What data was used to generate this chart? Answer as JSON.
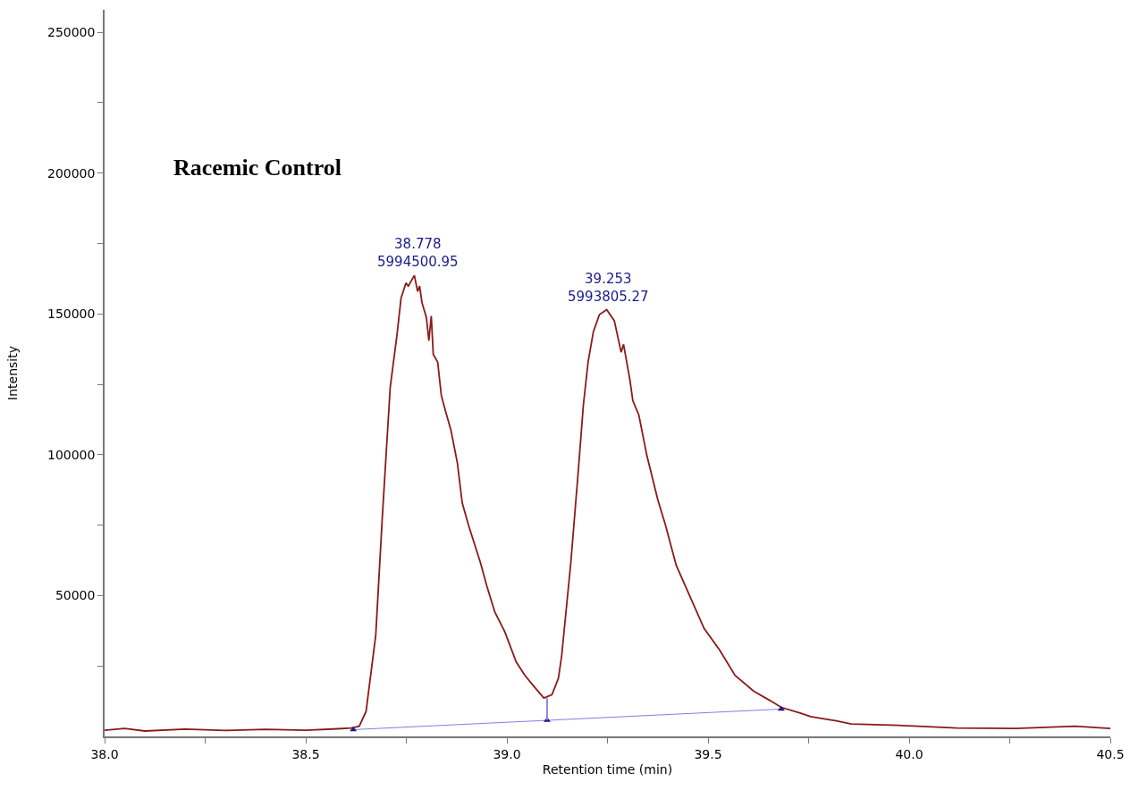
{
  "chart_data": {
    "type": "line",
    "title": "Racemic Control",
    "xlabel": "Retention time (min)",
    "ylabel": "Intensity",
    "xlim": [
      38.0,
      40.5
    ],
    "xticks": [
      {
        "value": 38,
        "label": "38.0"
      },
      {
        "value": 38.25,
        "label": null
      },
      38.5,
      {
        "value": 38.75,
        "label": null
      },
      {
        "value": 39,
        "label": "39.0"
      },
      {
        "value": 39.25,
        "label": null
      },
      39.5,
      {
        "value": 39.75,
        "label": null
      },
      {
        "value": 40,
        "label": "40.0"
      },
      {
        "value": 40.25,
        "label": null
      },
      40.5
    ],
    "ylim": [
      0,
      258000
    ],
    "yticks": [
      {
        "value": 25000,
        "label": null
      },
      50000,
      {
        "value": 75000,
        "label": null
      },
      100000,
      {
        "value": 125000,
        "label": null
      },
      150000,
      {
        "value": 175000,
        "label": null
      },
      200000,
      {
        "value": 225000,
        "label": null
      },
      250000
    ],
    "marker": "none",
    "line_style": "solid",
    "series": [
      {
        "color": "#8b1a1a",
        "x": [
          38.0,
          38.05,
          38.1,
          38.2,
          38.3,
          38.4,
          38.5,
          38.58,
          38.613,
          38.633,
          38.65,
          38.674,
          38.69,
          38.71,
          38.727,
          38.737,
          38.749,
          38.755,
          38.77,
          38.778,
          38.783,
          38.789,
          38.8,
          38.806,
          38.812,
          38.817,
          38.828,
          38.837,
          38.848,
          38.861,
          38.877,
          38.889,
          38.905,
          38.934,
          38.95,
          38.97,
          38.995,
          39.023,
          39.044,
          39.064,
          39.092,
          39.112,
          39.128,
          39.136,
          39.159,
          39.178,
          39.19,
          39.202,
          39.215,
          39.23,
          39.248,
          39.267,
          39.284,
          39.29,
          39.306,
          39.313,
          39.328,
          39.348,
          39.375,
          39.394,
          39.421,
          39.459,
          39.49,
          39.529,
          39.567,
          39.613,
          39.652,
          39.682,
          39.729,
          39.755,
          39.819,
          39.856,
          39.973,
          40.118,
          40.265,
          40.412,
          40.5
        ],
        "values": [
          2200,
          2800,
          1900,
          2600,
          2100,
          2500,
          2200,
          2700,
          3000,
          3600,
          8900,
          35900,
          77000,
          124000,
          142800,
          155700,
          161000,
          159900,
          163700,
          158000,
          159900,
          154000,
          148700,
          140500,
          149300,
          135700,
          132900,
          121100,
          115200,
          108700,
          97000,
          82900,
          74800,
          61800,
          53500,
          44100,
          37100,
          26500,
          21800,
          18300,
          13600,
          14800,
          20600,
          28400,
          61800,
          95200,
          117500,
          133100,
          143700,
          149800,
          151500,
          147600,
          136400,
          139200,
          126400,
          119200,
          114100,
          99700,
          84100,
          75100,
          60700,
          48400,
          38400,
          30600,
          21700,
          16100,
          12900,
          10300,
          8300,
          7000,
          5500,
          4400,
          3900,
          3000,
          2800,
          3600,
          2800
        ]
      },
      {
        "color": "#8080e0",
        "marker": "triangle",
        "x": [
          38.618,
          39.1,
          39.682
        ],
        "values": [
          2400,
          5700,
          9700
        ]
      },
      {
        "color": "#8080e0",
        "x": [
          39.1,
          39.1
        ],
        "values": [
          5700,
          13600
        ]
      }
    ],
    "annotations": [
      {
        "text": "38.778\n5994500.95",
        "x": 38.778,
        "y": 163700
      },
      {
        "text": "39.253\n5993805.27",
        "x": 39.253,
        "y": 151500
      }
    ]
  }
}
